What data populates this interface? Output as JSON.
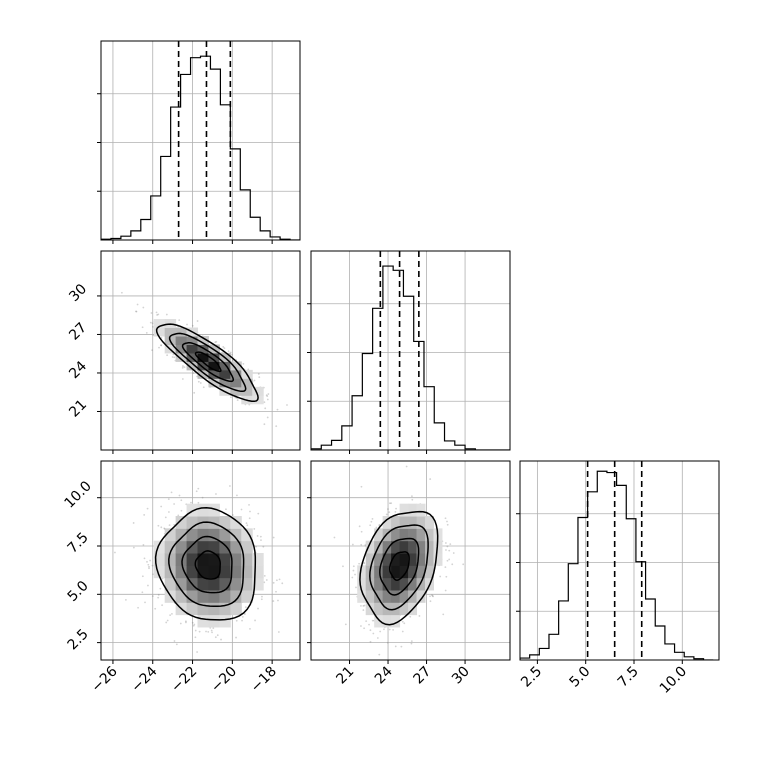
{
  "chart_data": {
    "type": "corner",
    "grid": true,
    "hist_line_color": "#000000",
    "quantile_line_style": "dashed",
    "point_color": "#808080",
    "density_colormap": [
      "#ffffff",
      "#000000"
    ],
    "params": [
      {
        "xlim": [
          -26.6,
          -16.6
        ],
        "ticks": [
          -26,
          -24,
          -22,
          -20,
          -18
        ],
        "tick_labels": [
          "−26",
          "−24",
          "−22",
          "−20",
          "−18"
        ],
        "quantiles": [
          -22.7,
          -21.3,
          -20.1
        ]
      },
      {
        "xlim": [
          18.0,
          33.5
        ],
        "ticks": [
          21,
          24,
          27,
          30
        ],
        "tick_labels": [
          "21",
          "24",
          "27",
          "30"
        ],
        "quantiles": [
          23.4,
          24.9,
          26.4
        ]
      },
      {
        "xlim": [
          1.6,
          11.9
        ],
        "ticks": [
          2.5,
          5.0,
          7.5,
          10.0
        ],
        "tick_labels": [
          "2.5",
          "5.0",
          "7.5",
          "10.0"
        ],
        "quantiles": [
          5.1,
          6.5,
          7.9
        ]
      }
    ],
    "histograms": [
      {
        "bin_edges": [
          -26.6,
          -26.1,
          -25.6,
          -25.1,
          -24.6,
          -24.1,
          -23.6,
          -23.1,
          -22.6,
          -22.1,
          -21.6,
          -21.1,
          -20.6,
          -20.1,
          -19.6,
          -19.1,
          -18.6,
          -18.1,
          -17.6,
          -17.1,
          -16.6
        ],
        "counts": [
          1,
          2,
          5,
          12,
          27,
          58,
          110,
          175,
          218,
          240,
          242,
          225,
          178,
          120,
          66,
          30,
          12,
          4,
          1,
          0
        ],
        "ylim": [
          0,
          262
        ]
      },
      {
        "bin_edges": [
          18.0,
          18.8,
          19.6,
          20.4,
          21.2,
          22.0,
          22.8,
          23.6,
          24.4,
          25.2,
          26.0,
          26.8,
          27.6,
          28.4,
          29.2,
          30.0,
          30.8,
          31.6,
          32.4,
          33.5
        ],
        "counts": [
          2,
          8,
          16,
          40,
          90,
          160,
          235,
          305,
          298,
          255,
          180,
          105,
          45,
          15,
          8,
          2,
          0,
          0,
          0
        ],
        "ylim": [
          0,
          330
        ]
      },
      {
        "bin_edges": [
          1.6,
          2.1,
          2.6,
          3.1,
          3.6,
          4.1,
          4.6,
          5.1,
          5.6,
          6.1,
          6.6,
          7.1,
          7.6,
          8.1,
          8.6,
          9.1,
          9.6,
          10.1,
          10.6,
          11.1,
          11.6
        ],
        "counts": [
          3,
          8,
          18,
          40,
          92,
          150,
          222,
          262,
          294,
          292,
          272,
          220,
          153,
          95,
          53,
          25,
          12,
          5,
          2,
          0
        ],
        "ylim": [
          0,
          310
        ]
      }
    ],
    "pairs": [
      {
        "x_param": 0,
        "y_param": 1,
        "mean": [
          -21.2,
          24.9
        ],
        "sd": [
          1.25,
          1.5
        ],
        "correlation": -0.85
      },
      {
        "x_param": 0,
        "y_param": 2,
        "mean": [
          -21.2,
          6.5
        ],
        "sd": [
          1.25,
          1.45
        ],
        "correlation": -0.08
      },
      {
        "x_param": 1,
        "y_param": 2,
        "mean": [
          24.9,
          6.5
        ],
        "sd": [
          1.5,
          1.45
        ],
        "correlation": 0.3
      }
    ],
    "contour_levels_sigma": [
      0.5,
      1.0,
      1.5,
      2.0
    ]
  }
}
